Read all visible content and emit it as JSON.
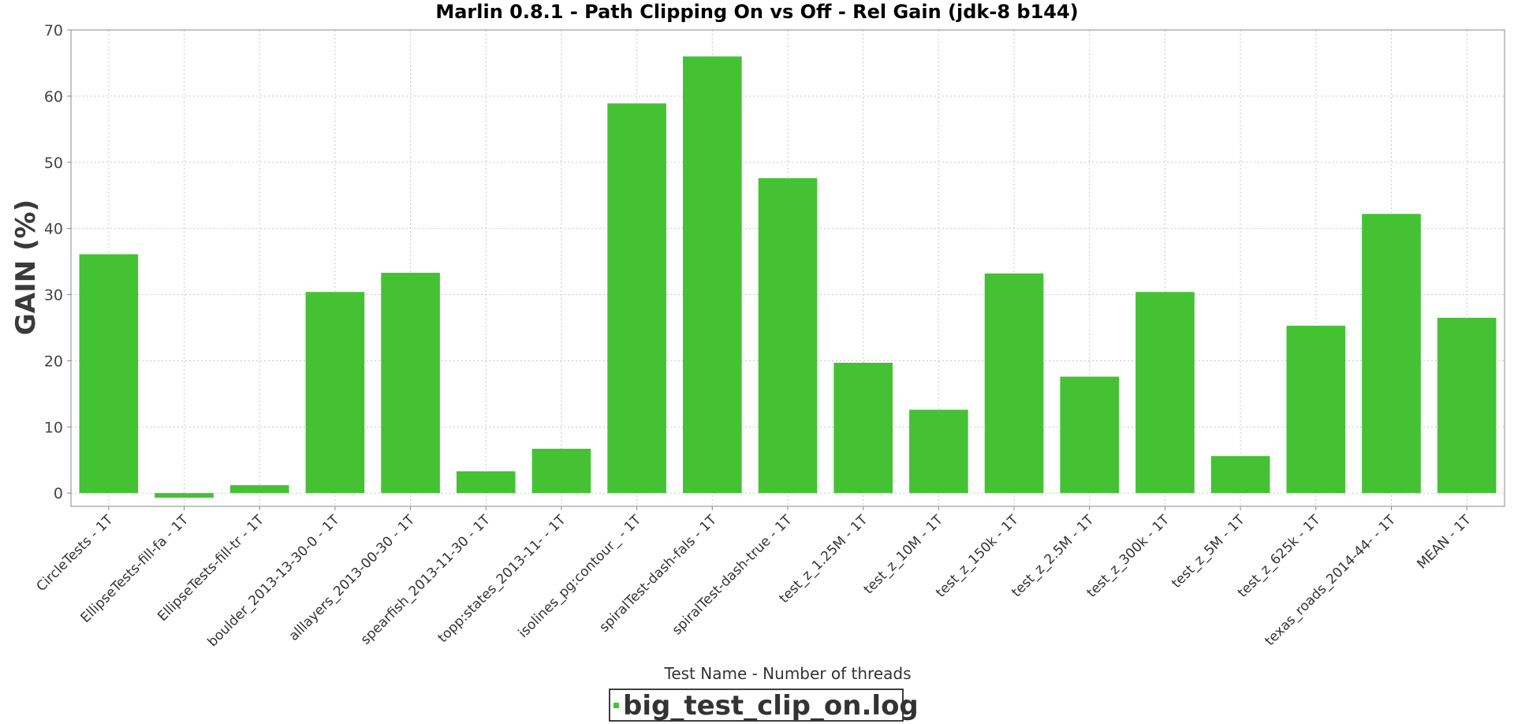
{
  "chart_data": {
    "type": "bar",
    "title": "Marlin 0.8.1 - Path Clipping On vs Off - Rel Gain (jdk-8 b144)",
    "xlabel": "Test Name - Number of threads",
    "ylabel": "GAIN (%)",
    "ylim": [
      -2,
      70
    ],
    "yticks": [
      0,
      10,
      20,
      30,
      40,
      50,
      60,
      70
    ],
    "grid": true,
    "legend_position": "bottom-center",
    "categories": [
      "CircleTests - 1T",
      "EllipseTests-fill-fa - 1T",
      "EllipseTests-fill-tr - 1T",
      "boulder_2013-13-30-0 - 1T",
      "alllayers_2013-00-30 - 1T",
      "spearfish_2013-11-30 - 1T",
      "topp:states_2013-11- - 1T",
      "isolines_pg:contour_ - 1T",
      "spiralTest-dash-fals - 1T",
      "spiralTest-dash-true - 1T",
      "test_z_1.25M - 1T",
      "test_z_10M - 1T",
      "test_z_150k - 1T",
      "test_z_2.5M - 1T",
      "test_z_300k - 1T",
      "test_z_5M - 1T",
      "test_z_625k - 1T",
      "texas_roads_2014-44- - 1T",
      "MEAN - 1T"
    ],
    "series": [
      {
        "name": "big_test_clip_on.log",
        "color": "#44c234",
        "values": [
          36.1,
          -0.7,
          1.2,
          30.4,
          33.3,
          3.3,
          6.7,
          58.9,
          66.0,
          47.6,
          19.7,
          12.6,
          33.2,
          17.6,
          30.4,
          5.6,
          25.3,
          42.2,
          26.5
        ]
      }
    ]
  }
}
